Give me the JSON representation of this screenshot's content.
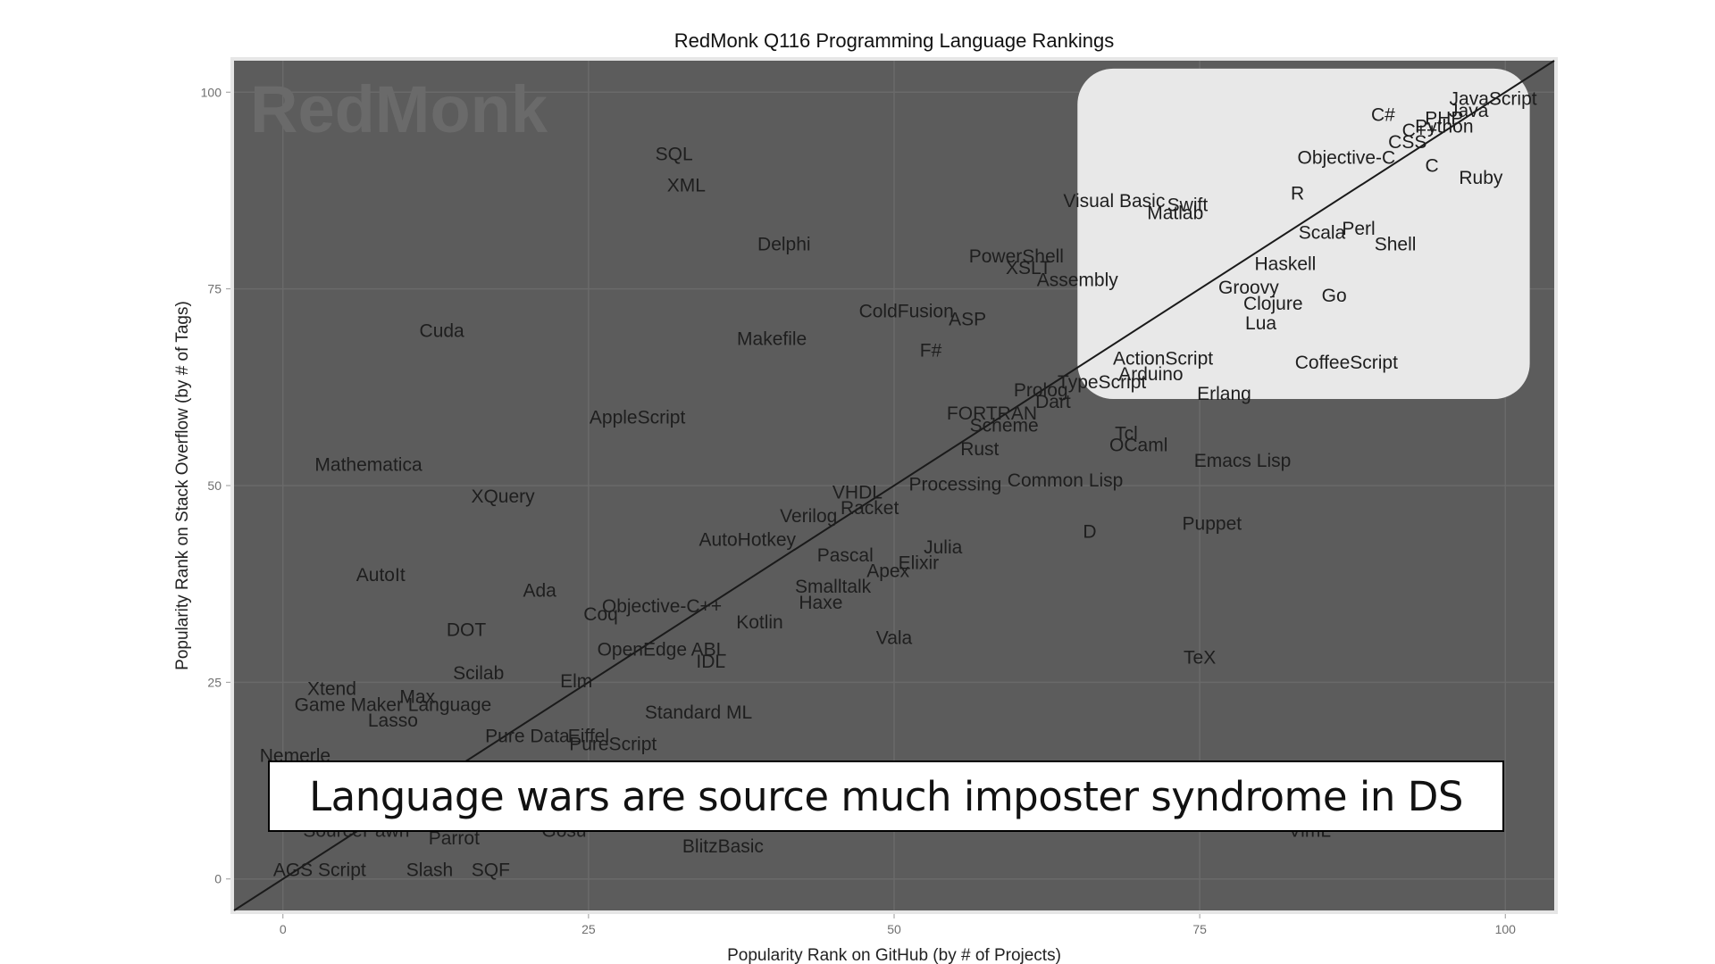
{
  "caption": "Language wars are source much imposter syndrome in DS",
  "watermark": "RedMonk",
  "colors": {
    "panel": "#5c5c5c",
    "panel_border": "#e6e6e6",
    "grid": "#6a6a6a",
    "highlight": "#e8e8e8",
    "diagonal": "#1a1a1a",
    "label": "#1e1e1e"
  },
  "chart_data": {
    "type": "scatter",
    "title": "RedMonk Q116 Programming Language Rankings",
    "xlabel": "Popularity Rank on GitHub (by # of Projects)",
    "ylabel": "Popularity Rank on Stack Overflow (by # of Tags)",
    "xlim": [
      -4,
      104
    ],
    "ylim": [
      -4,
      104
    ],
    "xticks": [
      0,
      25,
      50,
      75,
      100
    ],
    "yticks": [
      0,
      25,
      50,
      75,
      100
    ],
    "grid": true,
    "reference_line": "y = x",
    "highlight_region": {
      "x": [
        65,
        102
      ],
      "y": [
        61,
        103
      ]
    },
    "points": [
      {
        "label": "JavaScript",
        "x": 99,
        "y": 99
      },
      {
        "label": "Java",
        "x": 97,
        "y": 97.5
      },
      {
        "label": "PHP",
        "x": 95,
        "y": 96.5
      },
      {
        "label": "Python",
        "x": 95,
        "y": 95.5
      },
      {
        "label": "C#",
        "x": 90,
        "y": 97
      },
      {
        "label": "C++",
        "x": 93,
        "y": 95
      },
      {
        "label": "CSS",
        "x": 92,
        "y": 93.5
      },
      {
        "label": "Ruby",
        "x": 98,
        "y": 89
      },
      {
        "label": "C",
        "x": 94,
        "y": 90.5
      },
      {
        "label": "Objective-C",
        "x": 87,
        "y": 91.5
      },
      {
        "label": "R",
        "x": 83,
        "y": 87
      },
      {
        "label": "Visual Basic",
        "x": 68,
        "y": 86
      },
      {
        "label": "Swift",
        "x": 74,
        "y": 85.5
      },
      {
        "label": "Matlab",
        "x": 73,
        "y": 84.5
      },
      {
        "label": "Perl",
        "x": 88,
        "y": 82.5
      },
      {
        "label": "Scala",
        "x": 85,
        "y": 82
      },
      {
        "label": "Shell",
        "x": 91,
        "y": 80.5
      },
      {
        "label": "Haskell",
        "x": 82,
        "y": 78
      },
      {
        "label": "Groovy",
        "x": 79,
        "y": 75
      },
      {
        "label": "Go",
        "x": 86,
        "y": 74
      },
      {
        "label": "Clojure",
        "x": 81,
        "y": 73
      },
      {
        "label": "Lua",
        "x": 80,
        "y": 70.5
      },
      {
        "label": "CoffeeScript",
        "x": 87,
        "y": 65.5
      },
      {
        "label": "ActionScript",
        "x": 72,
        "y": 66
      },
      {
        "label": "Arduino",
        "x": 71,
        "y": 64
      },
      {
        "label": "TypeScript",
        "x": 67,
        "y": 63
      },
      {
        "label": "Erlang",
        "x": 77,
        "y": 61.5
      },
      {
        "label": "SQL",
        "x": 32,
        "y": 92
      },
      {
        "label": "XML",
        "x": 33,
        "y": 88
      },
      {
        "label": "Delphi",
        "x": 41,
        "y": 80.5
      },
      {
        "label": "PowerShell",
        "x": 60,
        "y": 79
      },
      {
        "label": "XSLT",
        "x": 61,
        "y": 77.5
      },
      {
        "label": "Assembly",
        "x": 65,
        "y": 76
      },
      {
        "label": "ColdFusion",
        "x": 51,
        "y": 72
      },
      {
        "label": "ASP",
        "x": 56,
        "y": 71
      },
      {
        "label": "Cuda",
        "x": 13,
        "y": 69.5
      },
      {
        "label": "Makefile",
        "x": 40,
        "y": 68.5
      },
      {
        "label": "F#",
        "x": 53,
        "y": 67
      },
      {
        "label": "Prolog",
        "x": 62,
        "y": 62
      },
      {
        "label": "Dart",
        "x": 63,
        "y": 60.5
      },
      {
        "label": "FORTRAN",
        "x": 58,
        "y": 59
      },
      {
        "label": "Scheme",
        "x": 59,
        "y": 57.5
      },
      {
        "label": "AppleScript",
        "x": 29,
        "y": 58.5
      },
      {
        "label": "Rust",
        "x": 57,
        "y": 54.5
      },
      {
        "label": "Tcl",
        "x": 69,
        "y": 56.5
      },
      {
        "label": "OCaml",
        "x": 70,
        "y": 55
      },
      {
        "label": "Emacs Lisp",
        "x": 78.5,
        "y": 53
      },
      {
        "label": "Mathematica",
        "x": 7,
        "y": 52.5
      },
      {
        "label": "Common Lisp",
        "x": 64,
        "y": 50.5
      },
      {
        "label": "Processing",
        "x": 55,
        "y": 50
      },
      {
        "label": "VHDL",
        "x": 47,
        "y": 49
      },
      {
        "label": "XQuery",
        "x": 18,
        "y": 48.5
      },
      {
        "label": "Racket",
        "x": 48,
        "y": 47
      },
      {
        "label": "Verilog",
        "x": 43,
        "y": 46
      },
      {
        "label": "Puppet",
        "x": 76,
        "y": 45
      },
      {
        "label": "D",
        "x": 66,
        "y": 44
      },
      {
        "label": "AutoHotkey",
        "x": 38,
        "y": 43
      },
      {
        "label": "Julia",
        "x": 54,
        "y": 42
      },
      {
        "label": "Pascal",
        "x": 46,
        "y": 41
      },
      {
        "label": "Elixir",
        "x": 52,
        "y": 40
      },
      {
        "label": "Apex",
        "x": 49.5,
        "y": 39
      },
      {
        "label": "AutoIt",
        "x": 8,
        "y": 38.5
      },
      {
        "label": "Smalltalk",
        "x": 45,
        "y": 37
      },
      {
        "label": "Ada",
        "x": 21,
        "y": 36.5
      },
      {
        "label": "Haxe",
        "x": 44,
        "y": 35
      },
      {
        "label": "Objective-C++",
        "x": 31,
        "y": 34.5
      },
      {
        "label": "Coq",
        "x": 26,
        "y": 33.5
      },
      {
        "label": "Kotlin",
        "x": 39,
        "y": 32.5
      },
      {
        "label": "DOT",
        "x": 15,
        "y": 31.5
      },
      {
        "label": "Vala",
        "x": 50,
        "y": 30.5
      },
      {
        "label": "OpenEdge ABL",
        "x": 31,
        "y": 29
      },
      {
        "label": "TeX",
        "x": 75,
        "y": 28
      },
      {
        "label": "IDL",
        "x": 35,
        "y": 27.5
      },
      {
        "label": "Scilab",
        "x": 16,
        "y": 26
      },
      {
        "label": "Elm",
        "x": 24,
        "y": 25
      },
      {
        "label": "Xtend",
        "x": 4,
        "y": 24
      },
      {
        "label": "Max",
        "x": 11,
        "y": 23
      },
      {
        "label": "Game Maker Language",
        "x": 9,
        "y": 22
      },
      {
        "label": "Standard ML",
        "x": 34,
        "y": 21
      },
      {
        "label": "Lasso",
        "x": 9,
        "y": 20
      },
      {
        "label": "Pure Data",
        "x": 20,
        "y": 18
      },
      {
        "label": "Eiffel",
        "x": 25,
        "y": 18
      },
      {
        "label": "PureScript",
        "x": 27,
        "y": 17
      },
      {
        "label": "Nemerle",
        "x": 1,
        "y": 15.5
      },
      {
        "label": "SourcePawn",
        "x": 6,
        "y": 6
      },
      {
        "label": "Parrot",
        "x": 14,
        "y": 5
      },
      {
        "label": "Gosu",
        "x": 23,
        "y": 6
      },
      {
        "label": "BlitzBasic",
        "x": 36,
        "y": 4
      },
      {
        "label": "VimL",
        "x": 84,
        "y": 6
      },
      {
        "label": "AGS Script",
        "x": 3,
        "y": 1
      },
      {
        "label": "Slash",
        "x": 12,
        "y": 1
      },
      {
        "label": "SQF",
        "x": 17,
        "y": 1
      }
    ]
  }
}
